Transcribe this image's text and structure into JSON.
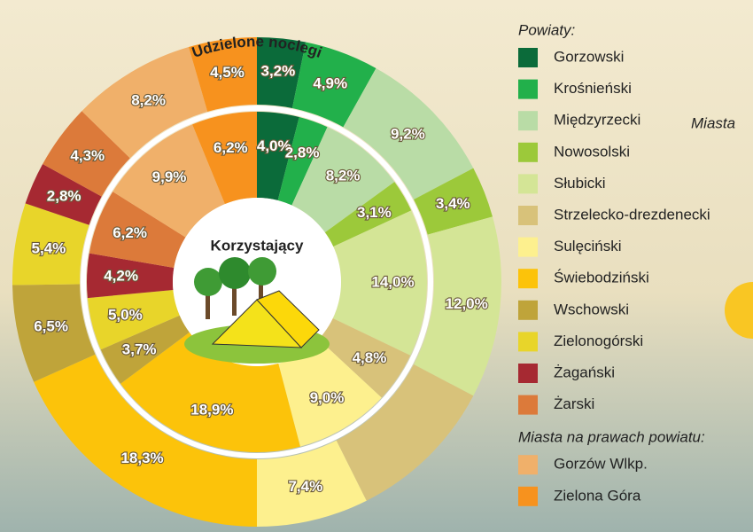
{
  "chart_data": {
    "type": "donut",
    "groups": [
      {
        "title": "Powiaty:",
        "categories": [
          "Gorzowski",
          "Krośnieński",
          "Międzyrzecki",
          "Nowosolski",
          "Słubicki",
          "Strzelecko-drezdenecki",
          "Sulęciński",
          "Świebodziński",
          "Wschowski",
          "Zielonogórski",
          "Żagański",
          "Żarski"
        ],
        "colors": [
          "#0b6b3a",
          "#22b04b",
          "#b9dca6",
          "#9cc93a",
          "#d4e596",
          "#d8c27a",
          "#fdf08e",
          "#fcc30a",
          "#bfa43a",
          "#e8d52a",
          "#a62932",
          "#dc7a3a"
        ]
      },
      {
        "title": "Miasta na prawach powiatu:",
        "categories": [
          "Gorzów Wlkp.",
          "Zielona Góra"
        ],
        "colors": [
          "#f0b06a",
          "#f7921e"
        ]
      }
    ],
    "series": [
      {
        "name": "Udzielone noclegi",
        "values": [
          3.2,
          4.9,
          9.2,
          3.4,
          12.0,
          9.9,
          7.4,
          18.3,
          6.5,
          5.4,
          2.8,
          4.3,
          8.2,
          4.5
        ],
        "value_labels": [
          "3,2%",
          "4,9%",
          "9,2%",
          "3,4%",
          "12,0%",
          null,
          "7,4%",
          "18,3%",
          "6,5%",
          "5,4%",
          "2,8%",
          "4,3%",
          "8,2%",
          "4,5%"
        ]
      },
      {
        "name": "Korzystający",
        "values": [
          4.0,
          2.8,
          8.2,
          3.1,
          14.0,
          4.8,
          9.0,
          18.9,
          3.7,
          5.0,
          4.2,
          6.2,
          9.9,
          6.2
        ],
        "value_labels": [
          "4,0%",
          "2,8%",
          "8,2%",
          "3,1%",
          "14,0%",
          "4,8%",
          "9,0%",
          "18,9%",
          "3,7%",
          "5,0%",
          "4,2%",
          "6,2%",
          "9,9%",
          "6,2%"
        ]
      }
    ],
    "annotation": "Miasta"
  }
}
